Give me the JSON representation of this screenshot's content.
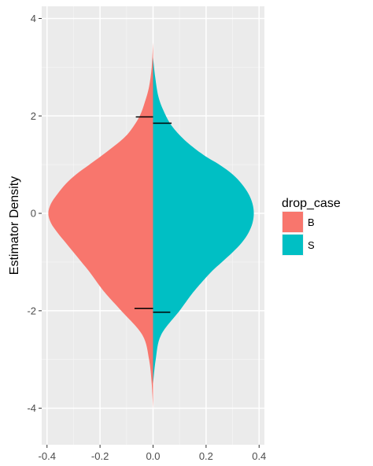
{
  "chart_data": {
    "type": "area",
    "subtype": "split-violin",
    "orientation": "horizontal-density",
    "title": "",
    "xlabel": "",
    "ylabel": "Estimator Density",
    "xlim": [
      -0.42,
      0.42
    ],
    "ylim": [
      -4.75,
      4.25
    ],
    "x_ticks": [
      -0.4,
      -0.2,
      0.0,
      0.2,
      0.4
    ],
    "x_tick_labels": [
      "-0.4",
      "-0.2",
      "0.0",
      "0.2",
      "0.4"
    ],
    "y_ticks": [
      -4,
      -2,
      0,
      2,
      4
    ],
    "y_tick_labels": [
      "-4",
      "-2",
      "0",
      "2",
      "4"
    ],
    "grid": true,
    "background": "#ebebeb",
    "legend": {
      "title": "drop_case",
      "placement": "right",
      "entries": [
        {
          "label": "B",
          "color": "#f8766d"
        },
        {
          "label": "S",
          "color": "#00bfc4"
        }
      ]
    },
    "series": [
      {
        "name": "B",
        "side": "left",
        "color": "#f8766d",
        "density_y": [
          -4.0,
          -3.5,
          -3.0,
          -2.5,
          -2.0,
          -1.7,
          -1.5,
          -1.2,
          -1.0,
          -0.8,
          -0.6,
          -0.4,
          -0.2,
          0.0,
          0.2,
          0.4,
          0.6,
          0.8,
          1.0,
          1.2,
          1.5,
          1.7,
          2.0,
          2.3,
          2.6,
          3.0,
          3.5
        ],
        "density_width": [
          0.0,
          0.005,
          0.015,
          0.04,
          0.12,
          0.17,
          0.2,
          0.24,
          0.27,
          0.3,
          0.33,
          0.36,
          0.385,
          0.395,
          0.385,
          0.36,
          0.33,
          0.29,
          0.24,
          0.19,
          0.12,
          0.085,
          0.05,
          0.03,
          0.015,
          0.005,
          0.0
        ],
        "quantiles": [
          {
            "y": -1.95,
            "half_width": 0.07
          },
          {
            "y": 1.98,
            "half_width": 0.065
          }
        ]
      },
      {
        "name": "S",
        "side": "right",
        "color": "#00bfc4",
        "density_y": [
          -3.5,
          -3.0,
          -2.5,
          -2.0,
          -1.7,
          -1.5,
          -1.2,
          -1.0,
          -0.8,
          -0.6,
          -0.4,
          -0.2,
          0.0,
          0.2,
          0.4,
          0.6,
          0.8,
          1.0,
          1.2,
          1.5,
          1.8,
          2.1,
          2.4,
          2.8,
          3.2
        ],
        "density_width": [
          0.0,
          0.01,
          0.03,
          0.1,
          0.14,
          0.17,
          0.22,
          0.26,
          0.3,
          0.335,
          0.36,
          0.375,
          0.38,
          0.375,
          0.36,
          0.335,
          0.3,
          0.25,
          0.19,
          0.12,
          0.07,
          0.04,
          0.02,
          0.008,
          0.0
        ],
        "quantiles": [
          {
            "y": -2.03,
            "half_width": 0.065
          },
          {
            "y": 1.85,
            "half_width": 0.07
          }
        ]
      }
    ]
  }
}
